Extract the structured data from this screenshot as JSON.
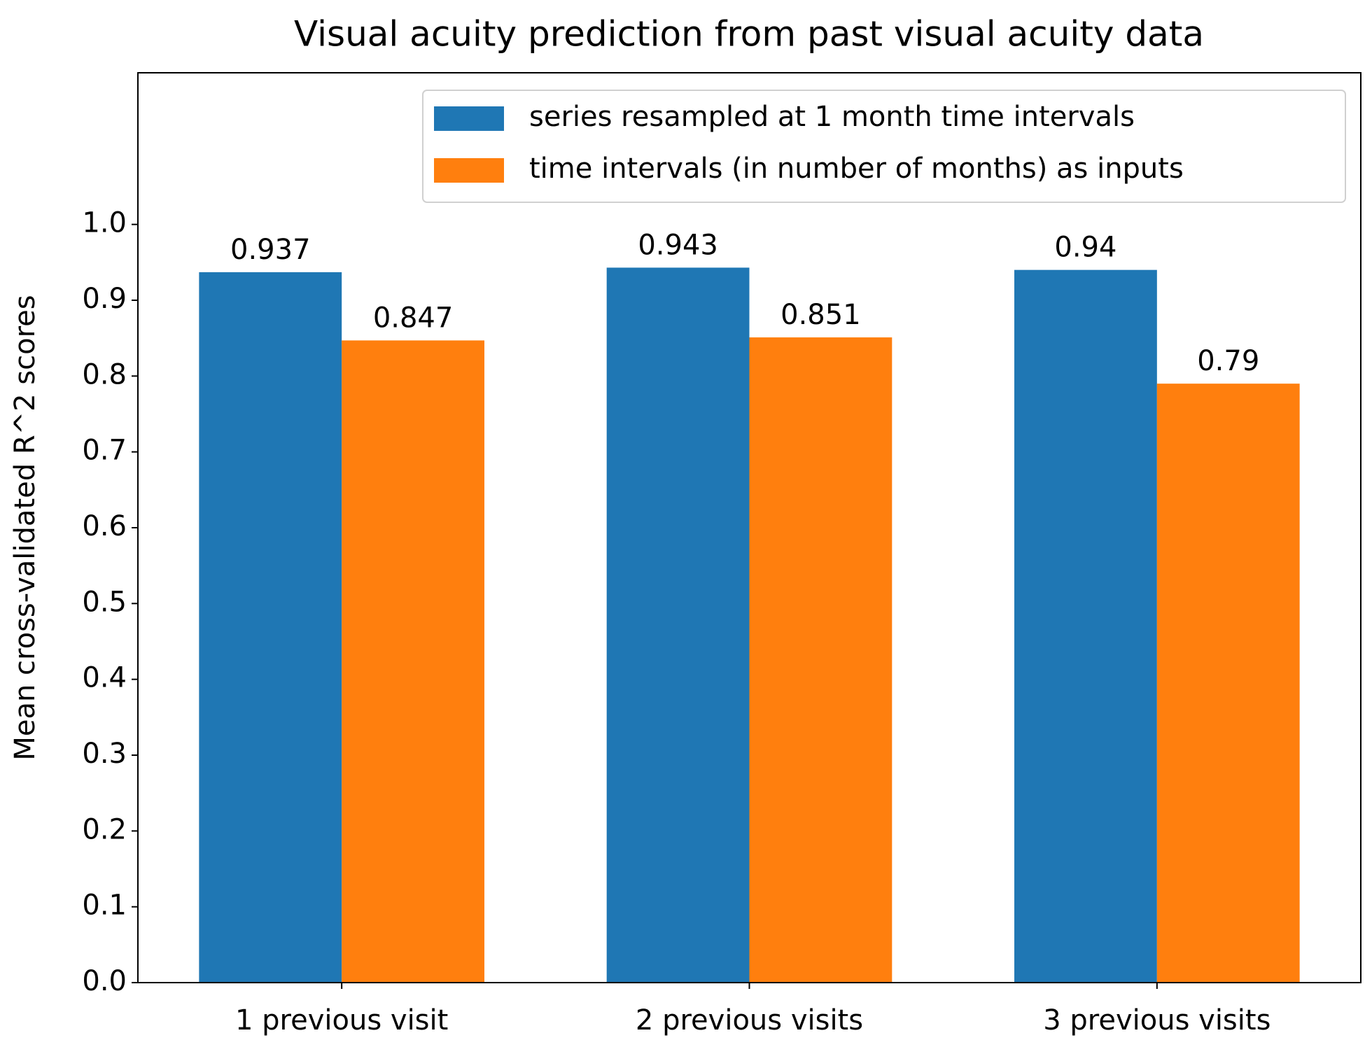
{
  "chart_data": {
    "type": "bar",
    "title": "Visual acuity prediction from past visual acuity data",
    "y_label": "Mean cross-validated R^2 scores",
    "categories": [
      "1 previous visit",
      "2 previous visits",
      "3 previous visits"
    ],
    "series": [
      {
        "name": "series resampled at 1 month time intervals",
        "color": "#1f77b4",
        "values": [
          0.937,
          0.943,
          0.94
        ]
      },
      {
        "name": "time intervals (in number of months) as inputs",
        "color": "#ff7f0e",
        "values": [
          0.847,
          0.851,
          0.79
        ]
      }
    ],
    "ylim": [
      0,
      1.2
    ],
    "yticks": [
      {
        "value": 0,
        "label": "0.0"
      },
      0.1,
      0.2,
      0.3,
      0.4,
      0.5,
      0.6,
      0.7,
      0.8,
      0.9,
      {
        "value": 1,
        "label": "1.0"
      }
    ],
    "legend": "upper right",
    "grid": false
  }
}
